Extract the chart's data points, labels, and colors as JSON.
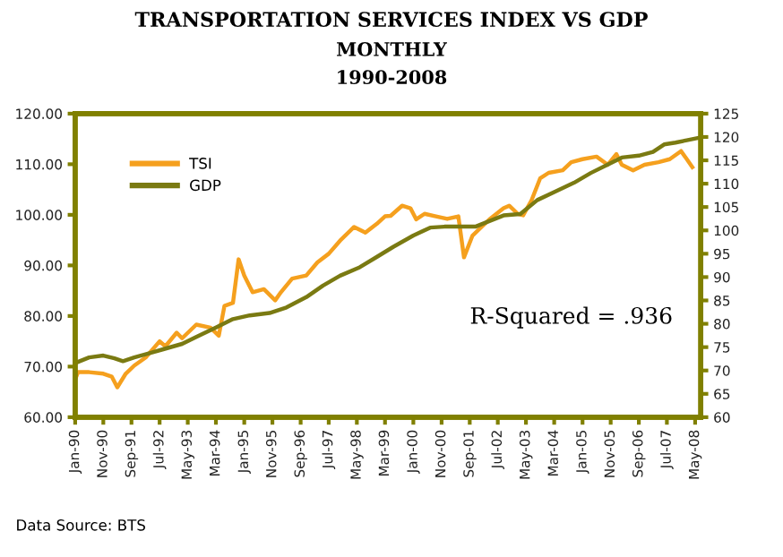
{
  "chart_data": {
    "type": "line",
    "title": "TRANSPORTATION SERVICES INDEX VS GDP",
    "subtitle": "MONTHLY\n1990-2008",
    "annotations": [
      "R-Squared = .936",
      "Data Source: BTS"
    ],
    "legend": "top left",
    "grid": false,
    "marker": "none",
    "line_style": "solid",
    "xlim": [
      "1990-01",
      "2008-07"
    ],
    "xticks": [
      {
        "value": "1990-01",
        "label": "Jan-90"
      },
      {
        "value": "1990-11",
        "label": "Nov-90"
      },
      {
        "value": "1991-09",
        "label": "Sep-91"
      },
      {
        "value": "1992-07",
        "label": "Jul-92"
      },
      {
        "value": "1993-05",
        "label": "May-93"
      },
      {
        "value": "1994-03",
        "label": "Mar-94"
      },
      {
        "value": "1995-01",
        "label": "Jan-95"
      },
      {
        "value": "1995-11",
        "label": "Nov-95"
      },
      {
        "value": "1996-09",
        "label": "Sep-96"
      },
      {
        "value": "1997-07",
        "label": "Jul-97"
      },
      {
        "value": "1998-05",
        "label": "May-98"
      },
      {
        "value": "1999-03",
        "label": "Mar-99"
      },
      {
        "value": "2000-01",
        "label": "Jan-00"
      },
      {
        "value": "2000-11",
        "label": "Nov-00"
      },
      {
        "value": "2001-09",
        "label": "Sep-01"
      },
      {
        "value": "2002-07",
        "label": "Jul-02"
      },
      {
        "value": "2003-05",
        "label": "May-03"
      },
      {
        "value": "2004-03",
        "label": "Mar-04"
      },
      {
        "value": "2005-01",
        "label": "Jan-05"
      },
      {
        "value": "2005-11",
        "label": "Nov-05"
      },
      {
        "value": "2006-09",
        "label": "Sep-06"
      },
      {
        "value": "2007-07",
        "label": "Jul-07"
      },
      {
        "value": "2008-05",
        "label": "May-08"
      }
    ],
    "ylim": [
      60,
      120
    ],
    "yticks": [
      {
        "value": 60,
        "label": "60.00"
      },
      {
        "value": 70,
        "label": "70.00"
      },
      {
        "value": 80,
        "label": "80.00"
      },
      {
        "value": 90,
        "label": "90.00"
      },
      {
        "value": 100,
        "label": "100.00"
      },
      {
        "value": 110,
        "label": "110.00"
      },
      {
        "value": 120,
        "label": "120.00"
      }
    ],
    "y2lim": [
      60,
      125
    ],
    "y2ticks": [
      60,
      65,
      70,
      75,
      80,
      85,
      90,
      95,
      100,
      105,
      110,
      115,
      120,
      125
    ],
    "series": [
      {
        "name": "TSI",
        "color": "#f5a01e",
        "x": [
          "1990-01",
          "1990-02",
          "1990-06",
          "1990-11",
          "1991-02",
          "1991-04",
          "1991-07",
          "1991-10",
          "1992-02",
          "1992-07",
          "1992-09",
          "1993-01",
          "1993-03",
          "1993-08",
          "1994-01",
          "1994-04",
          "1994-06",
          "1994-09",
          "1994-11",
          "1995-01",
          "1995-04",
          "1995-08",
          "1995-12",
          "1996-02",
          "1996-06",
          "1996-11",
          "1997-03",
          "1997-07",
          "1997-11",
          "1998-04",
          "1998-08",
          "1998-12",
          "1999-03",
          "1999-05",
          "1999-09",
          "1999-12",
          "2000-02",
          "2000-05",
          "2000-09",
          "2001-01",
          "2001-05",
          "2001-07",
          "2001-10",
          "2002-01",
          "2002-04",
          "2002-09",
          "2002-11",
          "2003-02",
          "2003-04",
          "2003-07",
          "2003-10",
          "2004-01",
          "2004-06",
          "2004-09",
          "2005-01",
          "2005-06",
          "2005-10",
          "2006-01",
          "2006-03",
          "2006-07",
          "2006-11",
          "2007-04",
          "2007-08",
          "2007-12",
          "2008-02",
          "2008-04"
        ],
        "values": [
          67.5,
          68.9,
          68.9,
          68.6,
          68,
          65.9,
          68.6,
          70.2,
          71.8,
          75,
          74,
          76.7,
          75.6,
          78.3,
          77.7,
          76.1,
          82,
          82.6,
          91.2,
          88,
          84.7,
          85.3,
          83.1,
          84.7,
          87.4,
          88,
          90.6,
          92.3,
          94.9,
          97.6,
          96.5,
          98.2,
          99.7,
          99.8,
          101.8,
          101.3,
          99.1,
          100.2,
          99.7,
          99.2,
          99.7,
          91.6,
          95.9,
          97.5,
          99.1,
          101.3,
          101.8,
          100.2,
          99.9,
          102.9,
          107.2,
          108.3,
          108.8,
          110.4,
          111,
          111.5,
          109.9,
          112,
          109.9,
          108.8,
          109.9,
          110.4,
          111,
          112.6,
          111,
          109.4
        ]
      },
      {
        "name": "GDP",
        "color": "#7a7a12",
        "axis": "y2",
        "x": [
          "1990-01",
          "1990-06",
          "1990-11",
          "1991-03",
          "1991-06",
          "1991-10",
          "1992-04",
          "1992-08",
          "1993-03",
          "1993-08",
          "1994-03",
          "1994-09",
          "1995-03",
          "1995-10",
          "1996-04",
          "1996-11",
          "1997-05",
          "1997-11",
          "1998-06",
          "1998-12",
          "1999-06",
          "2000-01",
          "2000-07",
          "2000-12",
          "2001-06",
          "2001-11",
          "2002-04",
          "2002-09",
          "2003-03",
          "2003-09",
          "2004-03",
          "2004-10",
          "2005-04",
          "2005-10",
          "2006-03",
          "2006-09",
          "2007-02",
          "2007-06",
          "2007-10",
          "2008-02",
          "2008-06"
        ],
        "values": [
          71.6,
          72.8,
          73.2,
          72.6,
          72.0,
          72.8,
          73.8,
          74.5,
          75.7,
          77.2,
          79.2,
          81.0,
          81.8,
          82.3,
          83.5,
          85.7,
          88.2,
          90.3,
          92.1,
          94.3,
          96.5,
          98.9,
          100.6,
          100.8,
          100.8,
          100.8,
          102.0,
          103.2,
          103.5,
          106.5,
          108.2,
          110.2,
          112.3,
          114.1,
          115.6,
          116.0,
          116.8,
          118.4,
          118.8,
          119.3,
          119.8
        ]
      }
    ]
  }
}
